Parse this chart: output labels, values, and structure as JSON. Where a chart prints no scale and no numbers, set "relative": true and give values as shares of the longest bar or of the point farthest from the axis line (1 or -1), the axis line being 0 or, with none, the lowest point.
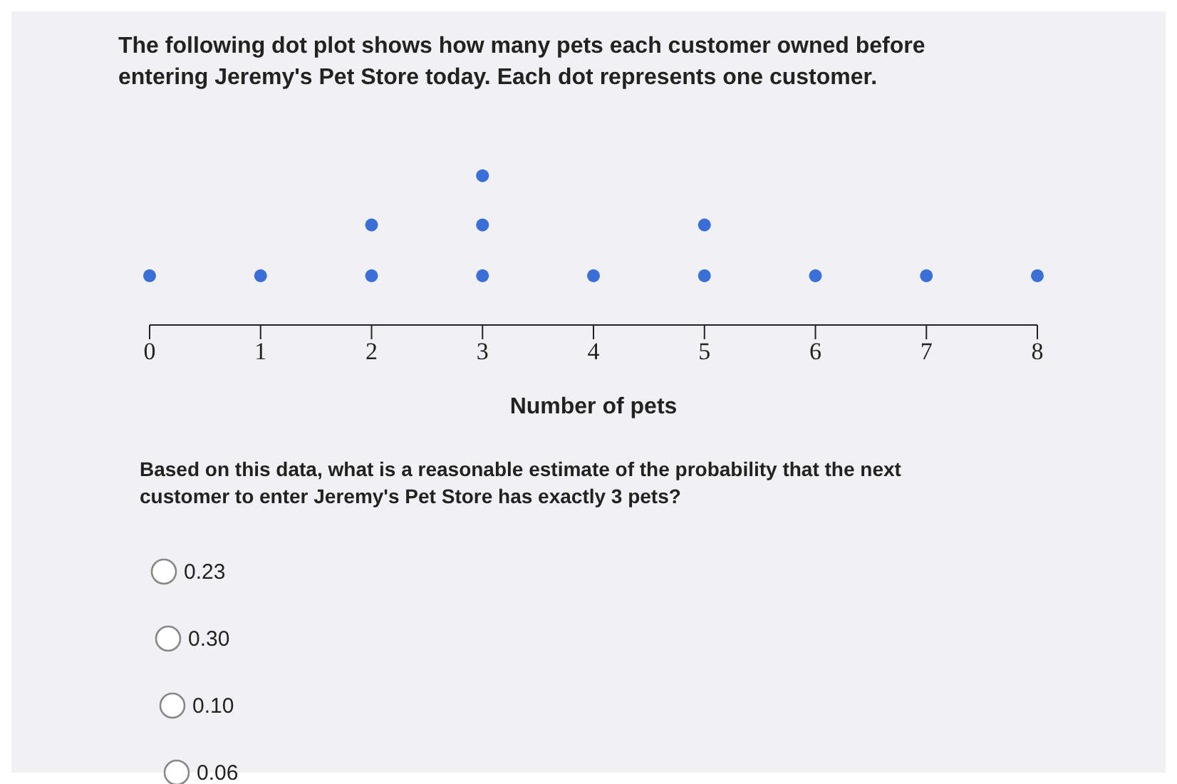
{
  "chart_data": {
    "type": "scatter",
    "title": "The following dot plot shows how many pets each customer owned before entering Jeremy's Pet Store today. Each dot represents one customer.",
    "xlabel": "Number of pets",
    "x": [
      0,
      1,
      2,
      2,
      3,
      3,
      3,
      4,
      5,
      5,
      6,
      7,
      8
    ],
    "values": [
      0.33,
      0.33,
      0.33,
      0.67,
      0.33,
      0.67,
      1,
      0.33,
      0.33,
      0.67,
      0.33,
      0.33,
      0.33
    ],
    "relative": true,
    "color": "#3a6fd8",
    "marker": "circle",
    "tick_labels": "x",
    "xlim": [
      0,
      8
    ],
    "xticks": [
      0,
      1,
      2,
      3,
      4,
      5,
      6,
      7,
      8
    ],
    "annotations": [
      "Based on this data, what is a reasonable estimate of the probability that the next customer to enter Jeremy's Pet Store has exactly 3 pets?",
      "0.23",
      "0.30",
      "0.10",
      "0.06"
    ]
  }
}
